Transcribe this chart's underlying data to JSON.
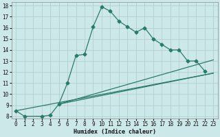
{
  "xlabel": "Humidex (Indice chaleur)",
  "bg_color": "#cde8e8",
  "grid_color": "#b0d0d0",
  "line_color": "#2a7a6a",
  "xlim": [
    -0.5,
    23.5
  ],
  "ylim": [
    7.8,
    18.3
  ],
  "xticks": [
    0,
    1,
    2,
    3,
    4,
    5,
    6,
    7,
    8,
    9,
    10,
    11,
    12,
    13,
    14,
    15,
    16,
    17,
    18,
    19,
    20,
    21,
    22,
    23
  ],
  "yticks": [
    8,
    9,
    10,
    11,
    12,
    13,
    14,
    15,
    16,
    17,
    18
  ],
  "main_curve_x": [
    0,
    1,
    3,
    4,
    5,
    6,
    7,
    8,
    9,
    10,
    11,
    12,
    13,
    14,
    15,
    16,
    17,
    18,
    19,
    20,
    21,
    22
  ],
  "main_curve_y": [
    8.5,
    8.0,
    8.0,
    8.1,
    9.1,
    11.0,
    13.5,
    13.6,
    16.1,
    17.9,
    17.5,
    16.6,
    16.1,
    15.6,
    16.0,
    15.0,
    14.5,
    14.0,
    14.0,
    13.0,
    13.0,
    12.1
  ],
  "line1_x": [
    0,
    23
  ],
  "line1_y": [
    8.5,
    11.9
  ],
  "line2_x": [
    5,
    23
  ],
  "line2_y": [
    9.1,
    11.9
  ],
  "line3_x": [
    5,
    23
  ],
  "line3_y": [
    9.1,
    13.1
  ],
  "xlabel_fontsize": 6.0,
  "tick_fontsize": 5.5
}
